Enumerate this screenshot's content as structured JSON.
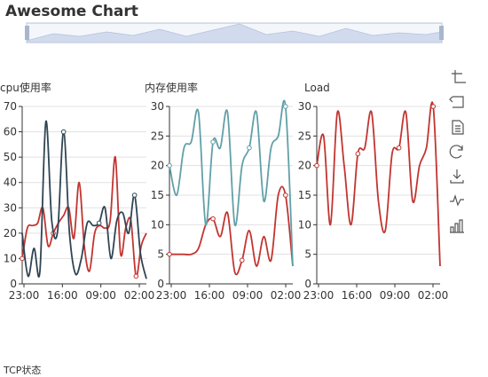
{
  "title": "Awesome Chart",
  "subtitle": "TCP状态",
  "colors": {
    "red": "#c23531",
    "navy": "#2f4554",
    "teal": "#61a0a8",
    "zoom_fill": "#d2dbee",
    "zoom_handle": "#a7b7cc"
  },
  "toolbox": [
    {
      "name": "zoom-icon",
      "label": "zoom"
    },
    {
      "name": "zoom-reset-icon",
      "label": "zoom-reset"
    },
    {
      "name": "data-view-icon",
      "label": "data-view"
    },
    {
      "name": "restore-icon",
      "label": "restore"
    },
    {
      "name": "save-image-icon",
      "label": "save-image"
    },
    {
      "name": "line-chart-icon",
      "label": "switch-line"
    },
    {
      "name": "bar-chart-icon",
      "label": "switch-bar"
    }
  ],
  "chart_data": [
    {
      "type": "line",
      "title": "cpu使用率",
      "x_ticks": [
        "23:00",
        "16:00",
        "09:00",
        "02:00"
      ],
      "ylim": [
        0,
        70
      ],
      "y_ticks": [
        0,
        10,
        20,
        30,
        40,
        50,
        60,
        70
      ],
      "grid": true,
      "series": [
        {
          "color": "red",
          "values": [
            10,
            22,
            23,
            24,
            30,
            15,
            20,
            24,
            27,
            30,
            18,
            40,
            15,
            5,
            20,
            23,
            22,
            25,
            50,
            12,
            22,
            25,
            3,
            15,
            20
          ],
          "markers": [
            0,
            6,
            22
          ]
        },
        {
          "color": "navy",
          "values": [
            20,
            3,
            14,
            5,
            64,
            25,
            21,
            60,
            20,
            4,
            10,
            24,
            23,
            24,
            30,
            10,
            25,
            28,
            20,
            35,
            12,
            2
          ],
          "markers": [
            7,
            13,
            19
          ]
        }
      ]
    },
    {
      "type": "line",
      "title": "内存使用率",
      "x_ticks": [
        "23:00",
        "16:00",
        "09:00",
        "02:00"
      ],
      "ylim": [
        0,
        30
      ],
      "y_ticks": [
        0,
        5,
        10,
        15,
        20,
        25,
        30
      ],
      "grid": true,
      "series": [
        {
          "color": "red",
          "values": [
            5,
            5,
            5,
            5,
            6,
            10,
            11,
            8,
            12,
            2,
            4,
            9,
            3,
            8,
            4,
            15,
            15,
            3
          ],
          "markers": [
            0,
            6,
            10,
            16
          ]
        },
        {
          "color": "teal",
          "values": [
            20,
            15,
            23,
            24,
            29,
            10,
            24,
            23,
            29,
            10,
            20,
            23,
            29,
            14,
            23,
            25,
            30,
            3
          ],
          "markers": [
            0,
            6,
            11,
            16
          ]
        }
      ]
    },
    {
      "type": "line",
      "title": "Load",
      "x_ticks": [
        "23:00",
        "16:00",
        "09:00",
        "02:00"
      ],
      "ylim": [
        0,
        30
      ],
      "y_ticks": [
        0,
        5,
        10,
        15,
        20,
        25,
        30
      ],
      "grid": true,
      "series": [
        {
          "color": "red",
          "values": [
            20,
            25,
            10,
            29,
            20,
            10,
            22,
            23,
            29,
            14,
            9,
            22,
            23,
            29,
            14,
            20,
            23,
            30,
            3
          ],
          "markers": [
            0,
            6,
            12,
            17
          ]
        }
      ]
    }
  ]
}
